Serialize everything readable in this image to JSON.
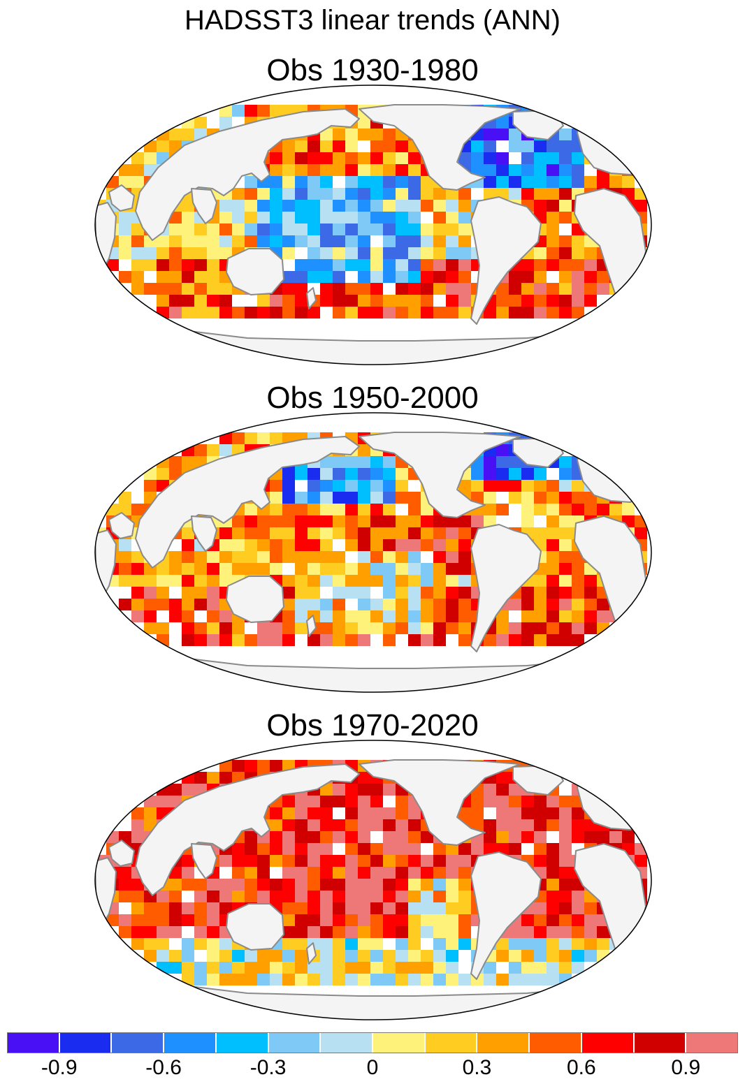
{
  "title": "HADSST3 linear trends (ANN)",
  "panels": [
    {
      "title": "Obs 1930-1980",
      "pattern": "p1930"
    },
    {
      "title": "Obs 1950-2000",
      "pattern": "p1950"
    },
    {
      "title": "Obs 1970-2020",
      "pattern": "p1970"
    }
  ],
  "colorbar": {
    "colors": [
      "#4a10f5",
      "#1a2cf0",
      "#3c6ae6",
      "#1e90ff",
      "#00bfff",
      "#7ec9f5",
      "#b8e0f3",
      "#fff27a",
      "#ffcc22",
      "#ff9f00",
      "#ff5c00",
      "#ff0000",
      "#d00000",
      "#ee7777"
    ],
    "tick_labels": [
      "-0.9",
      "-0.6",
      "-0.3",
      "0",
      "0.3",
      "0.6",
      "0.9"
    ]
  },
  "map_colors": {
    "land": "#f4f4f4",
    "coast": "#8a8a8a",
    "ocean": "#ffffff",
    "outline": "#000000"
  }
}
